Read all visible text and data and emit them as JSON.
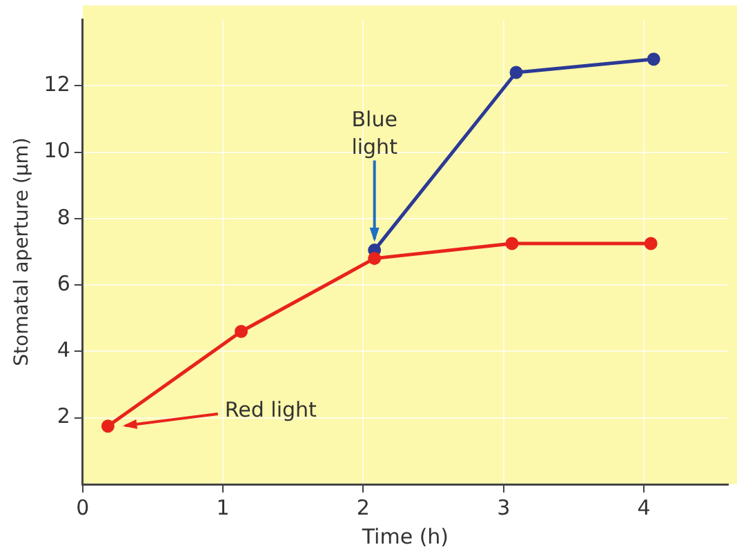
{
  "chart_data": {
    "type": "line",
    "xlabel": "Time (h)",
    "ylabel": "Stomatal aperture (µm)",
    "xlim": [
      0,
      4.6
    ],
    "xticks": [
      0,
      1,
      2,
      3,
      4
    ],
    "ylim": [
      0,
      14
    ],
    "yticks": [
      2,
      4,
      6,
      8,
      10,
      12
    ],
    "series": [
      {
        "color": "#e8231c",
        "x": [
          0.18,
          1.13,
          2.08,
          3.06,
          4.05
        ],
        "values": [
          1.75,
          4.6,
          6.8,
          7.25,
          7.25
        ]
      },
      {
        "color": "#2b3a96",
        "x": [
          2.08,
          3.09,
          4.07
        ],
        "values": [
          7.05,
          12.4,
          12.8
        ]
      }
    ],
    "annotations": [
      {
        "text": "Blue\nlight",
        "x": 2.08,
        "y": 7.05
      },
      "Red light"
    ],
    "grid": true,
    "legend": false,
    "marker": "circle",
    "line_style": "solid"
  }
}
